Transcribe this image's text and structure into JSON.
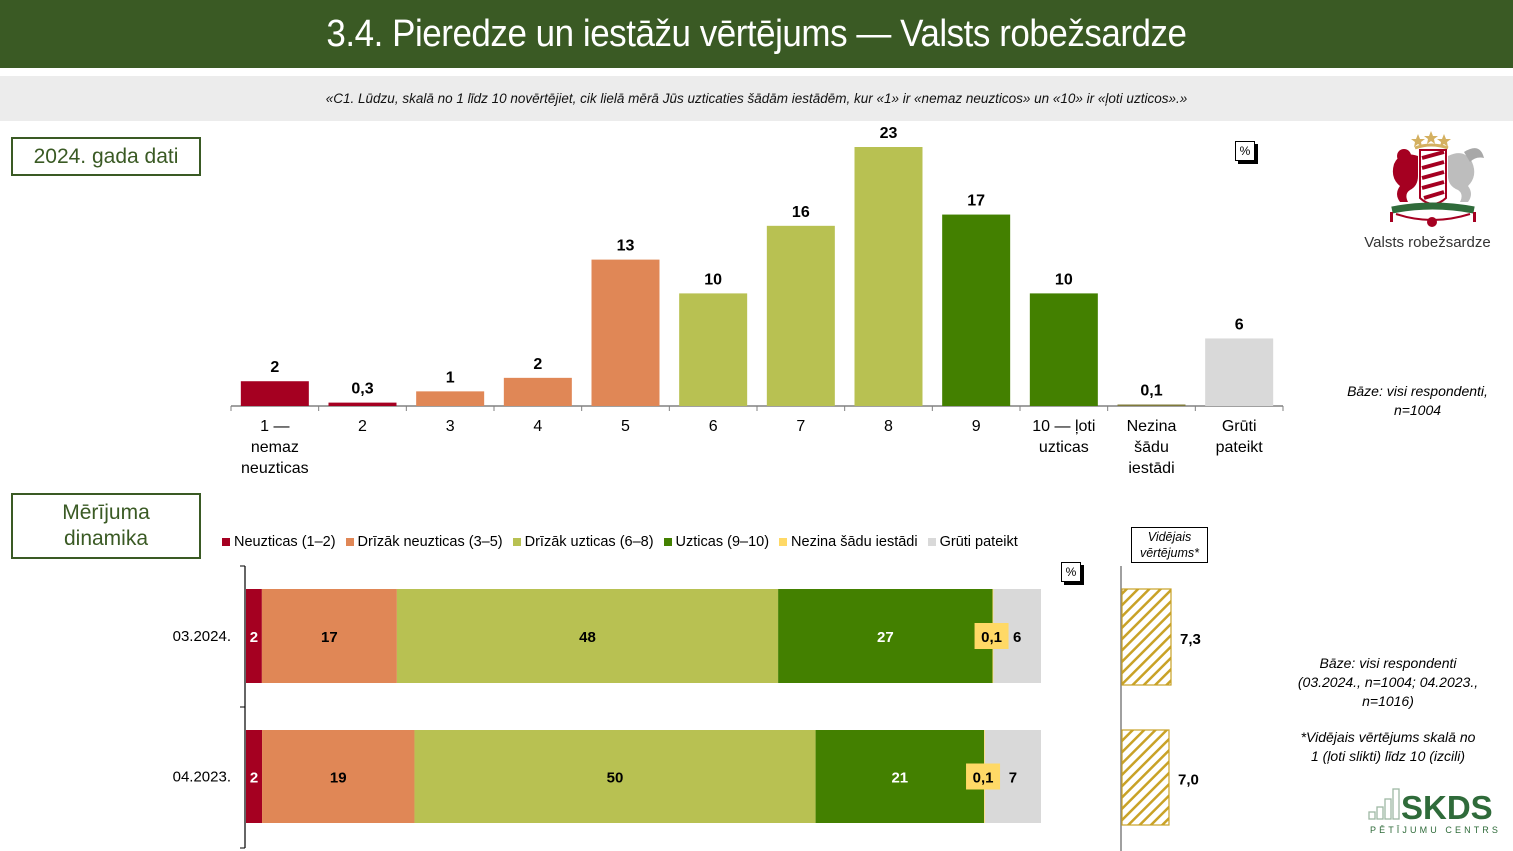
{
  "header": {
    "title": "3.4. Pieredze un iestāžu vērtējums — Valsts robežsardze",
    "question": "«C1. Lūdzu, skalā no 1 līdz 10 novērtējiet, cik lielā mērā Jūs uzticaties šādām iestādēm, kur «1» ir «nemaz neuzticos» un «10» ir «ļoti uzticos».»"
  },
  "sections": {
    "top_label": "2024. gada dati",
    "dynamics_label_line1": "Mērījuma",
    "dynamics_label_line2": "dinamika"
  },
  "percent_badge": "%",
  "logo": {
    "icon": "latvian-coat-of-arms-icon",
    "caption": "Valsts robežsardze"
  },
  "notes": {
    "top_base_line1": "Bāze: visi respondenti,",
    "top_base_line2": "n=1004",
    "bottom_base_line1": "Bāze: visi respondenti",
    "bottom_base_line2": "(03.2024., n=1004; 04.2023.,",
    "bottom_base_line3": "n=1016)",
    "footnote_line1": "*Vidējais vērtējums skalā no",
    "footnote_line2": "1 (ļoti slikti) līdz 10 (izcili)"
  },
  "brand": {
    "name": "SKDS",
    "subtitle": "PĒTĪJUMU CENTRS",
    "icon": "bar-chart-logo-icon"
  },
  "colors": {
    "title_bg": "#3a5a24",
    "distrust": "#a50021",
    "rather_distrust": "#e08756",
    "rather_trust": "#b8c152",
    "trust": "#438000",
    "dont_know_institution": "#ffd966",
    "hard_to_say": "#d9d9d9",
    "mean_hatch": "#c9a227"
  },
  "chart_data": [
    {
      "type": "bar",
      "title": "2024. gada dati",
      "unit": "%",
      "categories": [
        [
          "1 —",
          "nemaz",
          "neuzticas"
        ],
        [
          "2"
        ],
        [
          "3"
        ],
        [
          "4"
        ],
        [
          "5"
        ],
        [
          "6"
        ],
        [
          "7"
        ],
        [
          "8"
        ],
        [
          "9"
        ],
        [
          "10 — ļoti",
          "uzticas"
        ],
        [
          "Nezina",
          "šādu",
          "iestādi"
        ],
        [
          "Grūti",
          "pateikt"
        ]
      ],
      "values": [
        2,
        0.3,
        1,
        2,
        13,
        10,
        16,
        23,
        17,
        10,
        0.1,
        6
      ],
      "labels": [
        "2",
        "0,3",
        "1",
        "2",
        "13",
        "10",
        "16",
        "23",
        "17",
        "10",
        "0,1",
        "6"
      ],
      "display_heights": [
        2.2,
        0.3,
        1.3,
        2.5,
        13,
        10,
        16,
        23,
        17,
        10,
        0.1,
        6
      ],
      "color_groups": [
        "distrust",
        "distrust",
        "rather_distrust",
        "rather_distrust",
        "rather_distrust",
        "rather_trust",
        "rather_trust",
        "rather_trust",
        "trust",
        "trust",
        "dont_know_institution",
        "hard_to_say"
      ],
      "ylim": [
        0,
        23
      ],
      "grid": false,
      "xlabel": "",
      "ylabel": ""
    },
    {
      "type": "bar",
      "orientation": "horizontal-stacked",
      "title": "Mērījuma dinamika",
      "unit": "%",
      "legend_position": "top",
      "legend": [
        {
          "key": "distrust",
          "label": "Neuzticas (1–2)"
        },
        {
          "key": "rather_distrust",
          "label": "Drīzāk neuzticas (3–5)"
        },
        {
          "key": "rather_trust",
          "label": "Drīzāk uzticas (6–8)"
        },
        {
          "key": "trust",
          "label": "Uzticas (9–10)"
        },
        {
          "key": "dont_know_institution",
          "label": "Nezina šādu iestādi"
        },
        {
          "key": "hard_to_say",
          "label": "Grūti pateikt"
        }
      ],
      "categories": [
        "03.2024.",
        "04.2023."
      ],
      "series": [
        {
          "name": "Neuzticas (1–2)",
          "key": "distrust",
          "values": [
            2,
            2
          ],
          "labels": [
            "2",
            "2"
          ],
          "label_color": "#ffffff"
        },
        {
          "name": "Drīzāk neuzticas (3–5)",
          "key": "rather_distrust",
          "values": [
            17,
            19
          ],
          "labels": [
            "17",
            "19"
          ],
          "label_color": "#000000"
        },
        {
          "name": "Drīzāk uzticas (6–8)",
          "key": "rather_trust",
          "values": [
            48,
            50
          ],
          "labels": [
            "48",
            "50"
          ],
          "label_color": "#000000"
        },
        {
          "name": "Uzticas (9–10)",
          "key": "trust",
          "values": [
            27,
            21
          ],
          "labels": [
            "27",
            "21"
          ],
          "label_color": "#ffffff"
        },
        {
          "name": "Nezina šādu iestādi",
          "key": "dont_know_institution",
          "values": [
            0.1,
            0.1
          ],
          "labels": [
            "0,1",
            "0,1"
          ],
          "label_color": "#000000"
        },
        {
          "name": "Grūti pateikt",
          "key": "hard_to_say",
          "values": [
            6,
            7
          ],
          "labels": [
            "6",
            "7"
          ],
          "label_color": "#000000"
        }
      ],
      "xlim": [
        0,
        100
      ]
    },
    {
      "type": "bar",
      "orientation": "horizontal",
      "title_line1": "Vidējais",
      "title_line2": "vērtējums*",
      "categories": [
        "03.2024.",
        "04.2023."
      ],
      "values": [
        7.3,
        7.0
      ],
      "labels": [
        "7,3",
        "7,0"
      ],
      "xlim": [
        0,
        10
      ],
      "style": "hatched"
    }
  ]
}
